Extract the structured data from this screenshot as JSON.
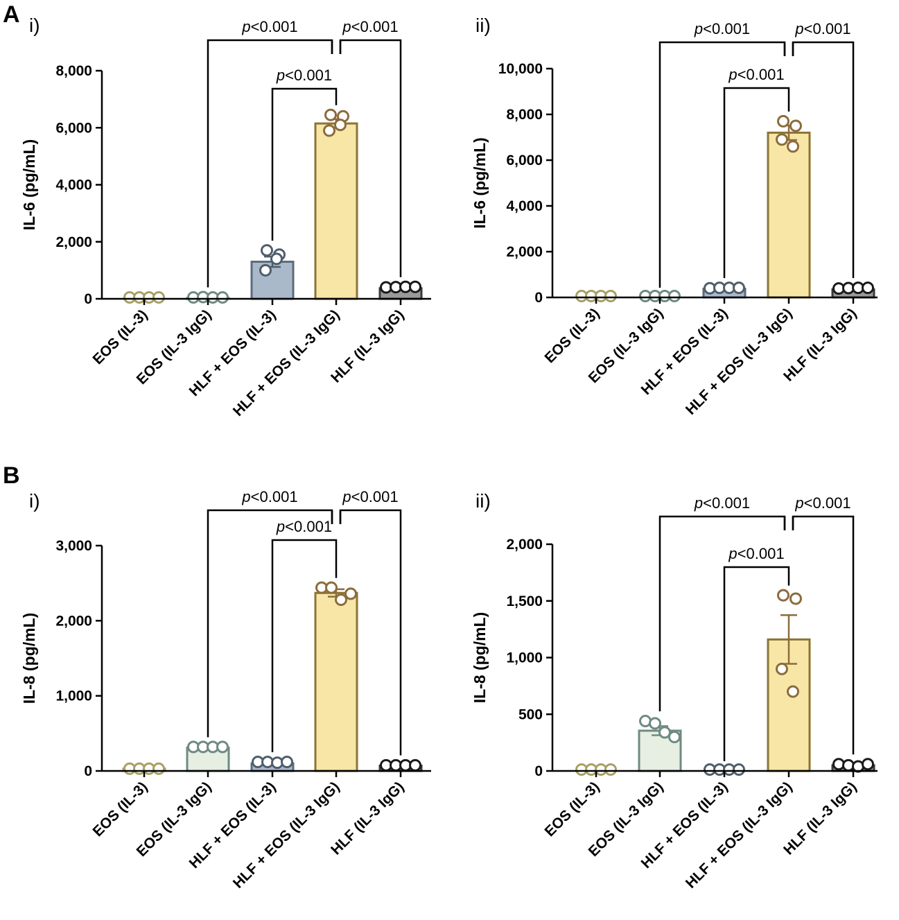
{
  "figure": {
    "panel_letters": [
      "A",
      "B"
    ],
    "p_label_prefix": "p",
    "p_label_suffix": "<0.001"
  },
  "chart_data": [
    {
      "type": "bar",
      "panel": "A",
      "sublabel": "i)",
      "categories": [
        "EOS (IL-3)",
        "EOS (IL-3 IgG)",
        "HLF + EOS (IL-3)",
        "HLF + EOS (IL-3 IgG)",
        "HLF (IL-3 IgG)"
      ],
      "values": [
        0,
        30,
        1300,
        6150,
        370
      ],
      "sem": [
        0,
        15,
        180,
        150,
        25
      ],
      "points": [
        [
          0,
          0,
          0,
          0
        ],
        [
          20,
          60,
          10,
          30
        ],
        [
          1700,
          1550,
          1000,
          1400
        ],
        [
          6450,
          6400,
          5900,
          6100
        ],
        [
          400,
          410,
          420,
          420
        ]
      ],
      "ylabel": "IL-6 (pg/mL)",
      "ylim": [
        0,
        8000
      ],
      "yticks": [
        0,
        2000,
        4000,
        6000,
        8000
      ],
      "ytick_labels": [
        "0",
        "2,000",
        "4,000",
        "6,000",
        "8,000"
      ],
      "brackets": [
        {
          "from": 3,
          "to": 2,
          "label": "<0.001"
        },
        {
          "from": 3,
          "to": 1,
          "label": "<0.001"
        },
        {
          "from": 3,
          "to": 4,
          "label": "<0.001"
        }
      ]
    },
    {
      "type": "bar",
      "panel": "A",
      "sublabel": "ii)",
      "categories": [
        "EOS (IL-3)",
        "EOS (IL-3 IgG)",
        "HLF + EOS (IL-3)",
        "HLF + EOS (IL-3 IgG)",
        "HLF (IL-3 IgG)"
      ],
      "values": [
        0,
        0,
        380,
        7200,
        350
      ],
      "sem": [
        0,
        0,
        30,
        320,
        30
      ],
      "points": [
        [
          0,
          0,
          0,
          0
        ],
        [
          0,
          0,
          0,
          0
        ],
        [
          400,
          420,
          420,
          420
        ],
        [
          7700,
          7500,
          6900,
          6600
        ],
        [
          390,
          410,
          420,
          420
        ]
      ],
      "ylabel": "IL-6 (pg/mL)",
      "ylim": [
        0,
        10000
      ],
      "yticks": [
        0,
        2000,
        4000,
        6000,
        8000,
        10000
      ],
      "ytick_labels": [
        "0",
        "2,000",
        "4,000",
        "6,000",
        "8,000",
        "10,000"
      ],
      "brackets": [
        {
          "from": 3,
          "to": 2,
          "label": "<0.001"
        },
        {
          "from": 3,
          "to": 1,
          "label": "<0.001"
        },
        {
          "from": 3,
          "to": 4,
          "label": "<0.001"
        }
      ]
    },
    {
      "type": "bar",
      "panel": "B",
      "sublabel": "i)",
      "categories": [
        "EOS (IL-3)",
        "EOS (IL-3 IgG)",
        "HLF + EOS (IL-3)",
        "HLF + EOS (IL-3 IgG)",
        "HLF (IL-3 IgG)"
      ],
      "values": [
        30,
        310,
        100,
        2370,
        70
      ],
      "sem": [
        5,
        10,
        15,
        50,
        8
      ],
      "points": [
        [
          30,
          30,
          30,
          30
        ],
        [
          320,
          320,
          320,
          320
        ],
        [
          120,
          120,
          110,
          120
        ],
        [
          2440,
          2440,
          2280,
          2360
        ],
        [
          75,
          75,
          75,
          75
        ]
      ],
      "ylabel": "IL-8 (pg/mL)",
      "ylim": [
        0,
        3000
      ],
      "yticks": [
        0,
        1000,
        2000,
        3000
      ],
      "ytick_labels": [
        "0",
        "1,000",
        "2,000",
        "3,000"
      ],
      "brackets": [
        {
          "from": 3,
          "to": 2,
          "label": "<0.001"
        },
        {
          "from": 3,
          "to": 1,
          "label": "<0.001"
        },
        {
          "from": 3,
          "to": 4,
          "label": "<0.001"
        }
      ]
    },
    {
      "type": "bar",
      "panel": "B",
      "sublabel": "ii)",
      "categories": [
        "EOS (IL-3)",
        "EOS (IL-3 IgG)",
        "HLF + EOS (IL-3)",
        "HLF + EOS (IL-3 IgG)",
        "HLF (IL-3 IgG)"
      ],
      "values": [
        0,
        355,
        0,
        1160,
        50
      ],
      "sem": [
        0,
        40,
        0,
        215,
        8
      ],
      "points": [
        [
          0,
          0,
          0,
          0
        ],
        [
          440,
          420,
          340,
          300
        ],
        [
          0,
          0,
          0,
          0
        ],
        [
          1550,
          1520,
          900,
          700
        ],
        [
          60,
          50,
          40,
          60
        ]
      ],
      "ylabel": "IL-8 (pg/mL)",
      "ylim": [
        0,
        2000
      ],
      "yticks": [
        0,
        500,
        1000,
        1500,
        2000
      ],
      "ytick_labels": [
        "0",
        "500",
        "1,000",
        "1,500",
        "2,000"
      ],
      "brackets": [
        {
          "from": 3,
          "to": 2,
          "label": "<0.001"
        },
        {
          "from": 3,
          "to": 1,
          "label": "<0.001"
        },
        {
          "from": 3,
          "to": 4,
          "label": "<0.001"
        }
      ]
    }
  ],
  "colors": {
    "stroke": [
      "#a8a064",
      "#6f8a82",
      "#5b6b7c",
      "#8c7434",
      "#3a3a3a"
    ],
    "fill": [
      "#ffffff",
      "#e6efe2",
      "#a9b9ca",
      "#f7e6a6",
      "#9a9a9a"
    ],
    "fill_b": [
      "#ffffff",
      "#e6efe2",
      "#a9b9ca",
      "#f7e6a6",
      "#9a9a9a"
    ],
    "point_stroke": [
      "#a8a064",
      "#6f8a82",
      "#4f5e6c",
      "#8c6c3c",
      "#1a1a1a"
    ]
  }
}
